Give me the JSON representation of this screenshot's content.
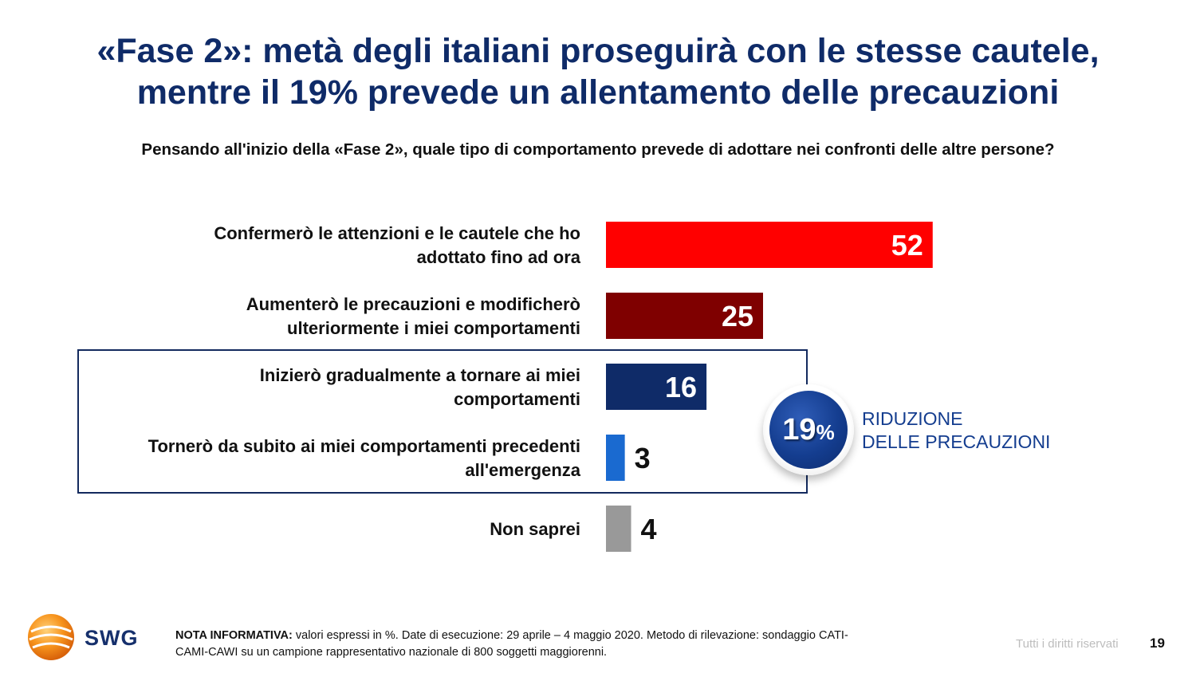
{
  "title_line1": "«Fase 2»: metà degli italiani proseguirà con le stesse cautele,",
  "title_line2": "mentre il 19% prevede un allentamento delle precauzioni",
  "subtitle": "Pensando all'inizio della «Fase 2», quale tipo di comportamento prevede di adottare nei confronti delle altre persone?",
  "chart_data": {
    "type": "bar",
    "orientation": "horizontal",
    "categories": [
      [
        "Confermerò le attenzioni e le cautele che ho",
        "adottato fino ad ora"
      ],
      [
        "Aumenterò le precauzioni e modificherò",
        "ulteriormente i miei comportamenti"
      ],
      [
        "Inizierò gradualmente a tornare ai miei",
        "comportamenti"
      ],
      [
        "Tornerò da subito ai miei comportamenti precedenti",
        "all'emergenza"
      ],
      [
        "Non saprei"
      ]
    ],
    "values": [
      52,
      25,
      16,
      3,
      4
    ],
    "colors": [
      "#ff0000",
      "#7f0000",
      "#0f2b68",
      "#1a6ad0",
      "#999999"
    ],
    "value_label_colors": [
      "#ffffff",
      "#ffffff",
      "#ffffff",
      "#111111",
      "#111111"
    ],
    "xlim": [
      0,
      100
    ],
    "grid": false,
    "legend": "none"
  },
  "callout": {
    "value": "19",
    "unit": "%",
    "line1": "RIDUZIONE",
    "line2": "DELLE PRECAUZIONI"
  },
  "footer": {
    "brand": "SWG",
    "note_label": "NOTA INFORMATIVA:",
    "note_line1": " valori espressi in %. Date di esecuzione: 29 aprile – 4 maggio 2020. Metodo di rilevazione: sondaggio CATI-",
    "note_line2": "CAMI-CAWI su un campione rappresentativo nazionale di 800 soggetti maggiorenni.",
    "rights": "Tutti i diritti riservati",
    "page": "19"
  }
}
